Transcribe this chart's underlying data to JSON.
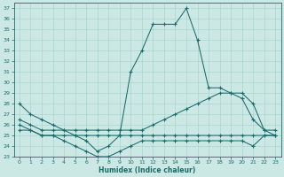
{
  "xlabel": "Humidex (Indice chaleur)",
  "background_color": "#cce8e4",
  "line_color": "#1a6b6b",
  "grid_color": "#b0d8d2",
  "xlim": [
    -0.5,
    23.5
  ],
  "ylim": [
    23,
    37.5
  ],
  "yticks": [
    23,
    24,
    25,
    26,
    27,
    28,
    29,
    30,
    31,
    32,
    33,
    34,
    35,
    36,
    37
  ],
  "xticks": [
    0,
    1,
    2,
    3,
    4,
    5,
    6,
    7,
    8,
    9,
    10,
    11,
    12,
    13,
    14,
    15,
    16,
    17,
    18,
    19,
    20,
    21,
    22,
    23
  ],
  "line1_x": [
    0,
    1,
    2,
    3,
    4,
    5,
    6,
    7,
    8,
    9,
    10,
    11,
    12,
    13,
    14,
    15,
    16,
    17,
    18,
    19,
    20,
    21,
    22,
    23
  ],
  "line1_y": [
    28,
    27,
    26.5,
    26,
    25.5,
    25,
    24.5,
    23.5,
    24,
    25,
    31,
    33,
    35.5,
    35.5,
    35.5,
    37,
    34,
    29.5,
    29.5,
    29,
    28.5,
    26.5,
    25.5,
    25.5
  ],
  "line2_x": [
    0,
    1,
    2,
    3,
    4,
    5,
    6,
    7,
    8,
    9,
    10,
    11,
    12,
    13,
    14,
    15,
    16,
    17,
    18,
    19,
    20,
    21,
    22,
    23
  ],
  "line2_y": [
    26.5,
    26,
    25.5,
    25.5,
    25.5,
    25.5,
    25.5,
    25.5,
    25.5,
    25.5,
    25.5,
    25.5,
    26,
    26.5,
    27,
    27.5,
    28,
    28.5,
    29,
    29,
    29,
    28,
    25.5,
    25
  ],
  "line3_x": [
    0,
    1,
    2,
    3,
    4,
    5,
    6,
    7,
    8,
    9,
    10,
    11,
    12,
    13,
    14,
    15,
    16,
    17,
    18,
    19,
    20,
    21,
    22,
    23
  ],
  "line3_y": [
    26,
    25.5,
    25,
    25,
    25,
    25,
    25,
    25,
    25,
    25,
    25,
    25,
    25,
    25,
    25,
    25,
    25,
    25,
    25,
    25,
    25,
    25,
    25,
    25
  ],
  "line4_x": [
    0,
    1,
    2,
    3,
    4,
    5,
    6,
    7,
    8,
    9,
    10,
    11,
    12,
    13,
    14,
    15,
    16,
    17,
    18,
    19,
    20,
    21,
    22,
    23
  ],
  "line4_y": [
    25.5,
    25.5,
    25,
    25,
    24.5,
    24,
    23.5,
    23,
    23,
    23.5,
    24,
    24.5,
    24.5,
    24.5,
    24.5,
    24.5,
    24.5,
    24.5,
    24.5,
    24.5,
    24.5,
    24,
    25,
    25
  ]
}
